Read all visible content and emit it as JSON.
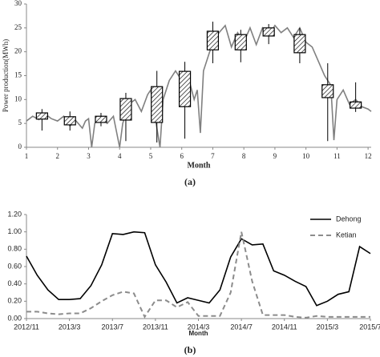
{
  "chart_data": [
    {
      "type": "line",
      "xlabel": "Month",
      "ylabel": "Power production(MWh)",
      "caption": "(a)",
      "xlim": [
        1,
        12.1
      ],
      "ylim": [
        0,
        30
      ],
      "xticks": [
        1,
        2,
        3,
        4,
        5,
        6,
        7,
        8,
        9,
        10,
        11,
        12
      ],
      "yticks": [
        0,
        5,
        10,
        15,
        20,
        25,
        30
      ],
      "series": [
        {
          "color": "#808080",
          "x": [
            1.0,
            1.2,
            1.4,
            1.6,
            1.8,
            2.0,
            2.2,
            2.4,
            2.6,
            2.8,
            2.9,
            3.0,
            3.1,
            3.2,
            3.4,
            3.6,
            3.8,
            4.0,
            4.1,
            4.3,
            4.5,
            4.7,
            4.9,
            5.0,
            5.1,
            5.3,
            5.4,
            5.6,
            5.8,
            6.0,
            6.2,
            6.4,
            6.5,
            6.6,
            6.7,
            6.9,
            7.0,
            7.2,
            7.4,
            7.6,
            7.8,
            8.0,
            8.2,
            8.4,
            8.6,
            8.8,
            9.0,
            9.2,
            9.4,
            9.6,
            9.8,
            10.0,
            10.2,
            10.4,
            10.6,
            10.8,
            10.9,
            11.0,
            11.2,
            11.4,
            11.6,
            11.8,
            12.0,
            12.1
          ],
          "values": [
            5.5,
            6.5,
            5.8,
            7,
            6,
            5.5,
            6.5,
            4.5,
            5.5,
            4,
            5.5,
            6,
            0,
            5,
            6.5,
            5,
            6.5,
            0,
            5,
            9,
            10,
            7.5,
            11,
            12,
            8,
            0,
            10,
            14,
            16,
            14,
            15,
            10,
            12,
            3,
            16,
            20,
            22,
            24,
            25.5,
            21,
            24,
            22,
            25,
            21.5,
            25,
            23.5,
            25.5,
            24,
            25,
            23,
            25,
            22,
            21,
            18,
            15,
            13,
            1.5,
            10,
            12,
            9,
            10,
            8.5,
            8,
            7.5
          ]
        }
      ],
      "boxes": {
        "color": "#000000",
        "x": [
          1.5,
          2.4,
          3.4,
          4.2,
          5.2,
          6.1,
          7.0,
          7.9,
          8.8,
          9.8,
          10.7,
          11.6
        ],
        "low": [
          3.5,
          3.5,
          4.4,
          1.3,
          1,
          1.8,
          17.6,
          17.8,
          21.6,
          17.6,
          1.3,
          7.4
        ],
        "q1": [
          5.9,
          4.7,
          5.2,
          5.7,
          5.2,
          8.5,
          20.4,
          20.4,
          23.3,
          19.8,
          10.4,
          8.2
        ],
        "q3": [
          7.2,
          6.4,
          6.5,
          10.2,
          12.7,
          15.9,
          24.3,
          23.6,
          25,
          23.6,
          13.1,
          9.5
        ],
        "high": [
          8,
          7.5,
          7.2,
          11.4,
          16,
          17.9,
          26.3,
          24.6,
          25.8,
          25,
          17.6,
          13.6
        ]
      }
    },
    {
      "type": "line",
      "xlabel": "Month",
      "caption": "(b)",
      "legend": "top-right",
      "categories": [
        "2012/11",
        null,
        null,
        null,
        "2013/3",
        null,
        null,
        null,
        "2013/7",
        null,
        null,
        null,
        "2013/11",
        null,
        null,
        null,
        "2014/3",
        null,
        null,
        null,
        "2014/7",
        null,
        null,
        null,
        "2014/11",
        null,
        null,
        null,
        "2015/3",
        null,
        null,
        null,
        "2015/7"
      ],
      "ylim": [
        0,
        1.2
      ],
      "yticks": [
        {
          "value": 0,
          "label": "0.00"
        },
        {
          "value": 0.2,
          "label": "0.20"
        },
        {
          "value": 0.4,
          "label": "0.40"
        },
        {
          "value": 0.6,
          "label": "0.60"
        },
        {
          "value": 0.8,
          "label": "0.80"
        },
        {
          "value": 1.0,
          "label": "1.00"
        },
        {
          "value": 1.2,
          "label": "1.20"
        }
      ],
      "series": [
        {
          "name": "Dehong",
          "color": "#000000",
          "dashed": false,
          "values": [
            0.72,
            0.5,
            0.33,
            0.22,
            0.22,
            0.23,
            0.38,
            0.62,
            0.98,
            0.97,
            1.0,
            0.99,
            0.62,
            0.42,
            0.18,
            0.24,
            0.21,
            0.18,
            0.33,
            0.71,
            0.92,
            0.85,
            0.86,
            0.55,
            0.5,
            0.43,
            0.37,
            0.15,
            0.2,
            0.28,
            0.31,
            0.83,
            0.75
          ]
        },
        {
          "name": "Ketian",
          "color": "#8c8c8c",
          "dashed": true,
          "values": [
            0.08,
            0.08,
            0.06,
            0.05,
            0.06,
            0.06,
            0.12,
            0.2,
            0.27,
            0.31,
            0.29,
            0.02,
            0.21,
            0.21,
            0.13,
            0.19,
            0.03,
            0.03,
            0.03,
            0.3,
            1.0,
            0.43,
            0.04,
            0.04,
            0.04,
            0.02,
            0.01,
            0.03,
            0.02,
            0.02,
            0.02,
            0.02,
            0.02
          ]
        }
      ]
    }
  ]
}
